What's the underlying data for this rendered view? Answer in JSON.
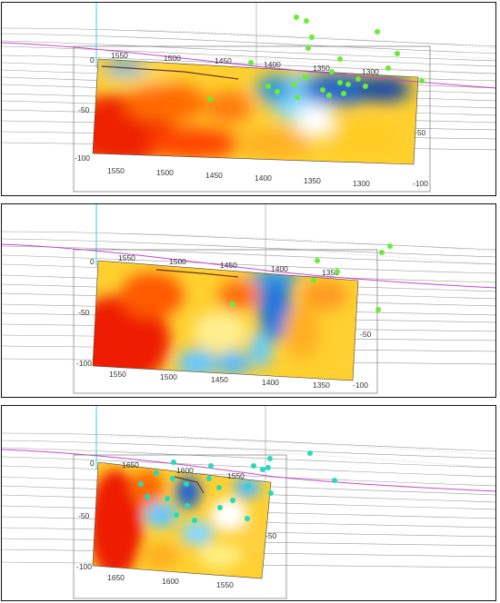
{
  "panels": [
    {
      "depth_top": "0",
      "depth_mid_left": "-50",
      "depth_mid_right": "-50",
      "depth_bottom_left": "-100",
      "depth_bottom_right": "-100",
      "top_ticks": [
        "1550",
        "1500",
        "1450",
        "1400",
        "1350",
        "1300"
      ],
      "bottom_ticks": [
        "1550",
        "1500",
        "1450",
        "1400",
        "1350",
        "1300"
      ],
      "marker_color": "#66ee33"
    },
    {
      "depth_top": "0",
      "depth_mid_left": "-50",
      "depth_mid_right": "-50",
      "depth_bottom_left": "-100",
      "depth_bottom_right": "-100",
      "top_ticks": [
        "1550",
        "1500",
        "1450",
        "1400",
        "1350"
      ],
      "bottom_ticks": [
        "1550",
        "1500",
        "1450",
        "1400",
        "1350"
      ],
      "marker_color": "#66ee33"
    },
    {
      "depth_top": "0",
      "depth_mid_left": "-50",
      "depth_mid_right": "-50",
      "depth_bottom_left": "-100",
      "depth_bottom_right": "",
      "top_ticks": [
        "1650",
        "1600",
        "1550"
      ],
      "bottom_ticks": [
        "1650",
        "1600",
        "1550"
      ],
      "marker_color": "#22ddbb"
    }
  ]
}
